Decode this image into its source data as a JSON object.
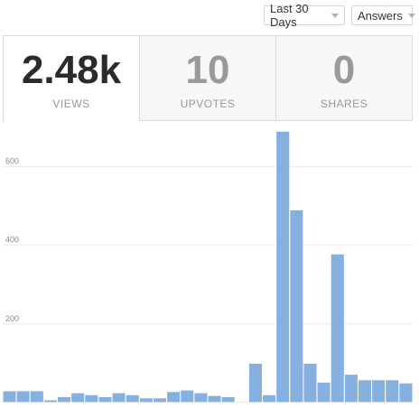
{
  "filters": {
    "range_label": "Last 30 Days",
    "type_label": "Answers"
  },
  "stats": [
    {
      "value": "2.48k",
      "label": "VIEWS"
    },
    {
      "value": "10",
      "label": "UPVOTES"
    },
    {
      "value": "0",
      "label": "SHARES"
    }
  ],
  "chart_data": {
    "type": "bar",
    "title": "",
    "xlabel": "",
    "ylabel": "",
    "ylim": [
      0,
      700
    ],
    "yticks": [
      200,
      400,
      600
    ],
    "grid": true,
    "series": [
      {
        "color": "#86b0e0",
        "values": [
          30,
          30,
          30,
          7,
          15,
          25,
          20,
          15,
          25,
          20,
          12,
          12,
          28,
          32,
          25,
          18,
          15,
          3,
          100,
          20,
          690,
          490,
          100,
          52,
          378,
          72,
          58,
          58,
          58,
          50
        ]
      }
    ]
  }
}
